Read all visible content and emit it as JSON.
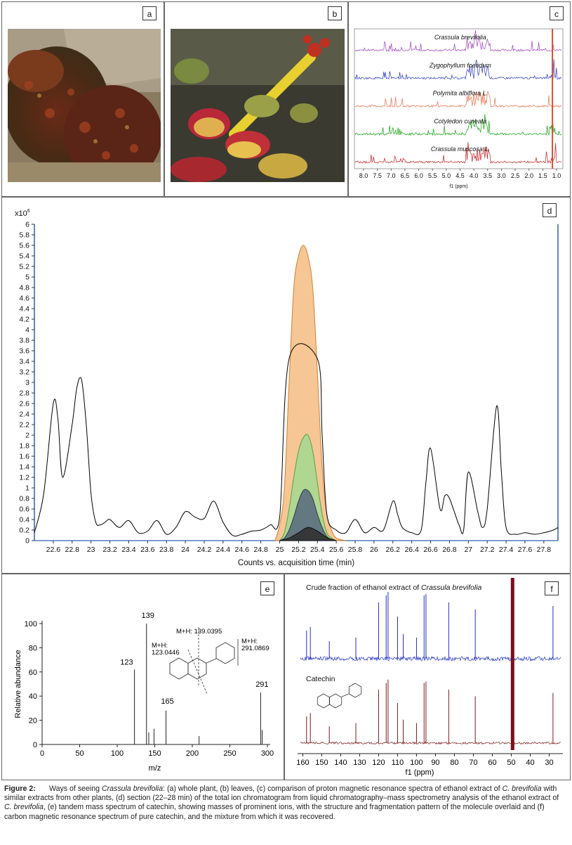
{
  "panels": {
    "a": {
      "label": "a"
    },
    "b": {
      "label": "b"
    },
    "c": {
      "label": "c",
      "spectra": [
        {
          "name": "Crassula brevifolia",
          "color": "#a040b8"
        },
        {
          "name": "Zygophyllum foetidum",
          "color": "#2838c0"
        },
        {
          "name": "Polymita albiflora L.",
          "color": "#e87050"
        },
        {
          "name": "Cotyledon cuneata",
          "color": "#10a010"
        },
        {
          "name": "Crassula muscosa L.",
          "color": "#c02020"
        }
      ],
      "ticks": [
        "8.0",
        "7.5",
        "7.0",
        "6.5",
        "6.0",
        "5.5",
        "5.0",
        "4.5",
        "4.0",
        "3.5",
        "3.0",
        "2.5",
        "2.0",
        "1.5",
        "1.0"
      ],
      "xlabel": "f1 (ppm)"
    },
    "d": {
      "label": "d",
      "ylabel_exp": "x10",
      "ylabel_sup": "6",
      "xlabel": "Counts vs. acquisition time (min)"
    },
    "e": {
      "label": "e",
      "ylabel": "Relative abundance",
      "xlabel": "m/z",
      "annot": {
        "mh1_a": "M+H:",
        "mh1_b": "123.0446",
        "mh2": "M+H: 139.0395",
        "mh3_a": "M+H:",
        "mh3_b": "291.0869",
        "p123": "123",
        "p139": "139",
        "p165": "165",
        "p291": "291"
      }
    },
    "f": {
      "label": "f",
      "top_title_prefix": "Crude fraction of ethanol extract of ",
      "top_title_italic": "Crassula brevifolia",
      "bottom_title": "Catechin",
      "xlabel": "f1 (ppm)",
      "ticks": [
        "160",
        "150",
        "140",
        "130",
        "120",
        "110",
        "100",
        "90",
        "80",
        "70",
        "60",
        "50",
        "40",
        "30"
      ]
    }
  },
  "chart_data": [
    {
      "type": "line",
      "title": "",
      "xlabel": "Counts vs. acquisition time (min)",
      "ylabel": "x10^6",
      "xlim": [
        22.4,
        27.95
      ],
      "ylim": [
        0,
        6
      ],
      "x_ticks": [
        22.6,
        22.8,
        23,
        23.2,
        23.4,
        23.6,
        23.8,
        24,
        24.2,
        24.4,
        24.6,
        24.8,
        25,
        25.2,
        25.4,
        25.6,
        25.8,
        26,
        26.2,
        26.4,
        26.6,
        26.8,
        27,
        27.2,
        27.4,
        27.6,
        27.8
      ],
      "y_ticks": [
        0,
        0.2,
        0.4,
        0.6,
        0.8,
        1,
        1.2,
        1.4,
        1.6,
        1.8,
        2,
        2.2,
        2.4,
        2.6,
        2.8,
        3,
        3.2,
        3.4,
        3.6,
        3.8,
        4,
        4.2,
        4.4,
        4.6,
        4.8,
        5,
        5.2,
        5.4,
        5.6,
        5.8,
        6
      ],
      "series": [
        {
          "color": "#000000",
          "x": [
            22.4,
            22.5,
            22.6,
            22.65,
            22.7,
            22.8,
            22.85,
            22.9,
            22.95,
            23.0,
            23.05,
            23.1,
            23.15,
            23.2,
            23.3,
            23.4,
            23.5,
            23.6,
            23.7,
            23.8,
            23.9,
            24.0,
            24.1,
            24.2,
            24.3,
            24.4,
            24.5,
            24.6,
            24.7,
            24.8,
            24.9,
            25.0,
            25.1,
            25.4,
            25.45,
            25.5,
            25.6,
            25.7,
            25.8,
            25.9,
            26.0,
            26.1,
            26.2,
            26.25,
            26.3,
            26.4,
            26.5,
            26.55,
            26.6,
            26.7,
            26.75,
            26.8,
            26.9,
            26.95,
            27.0,
            27.1,
            27.15,
            27.2,
            27.3,
            27.35,
            27.4,
            27.5,
            27.6,
            27.7,
            27.8,
            27.9,
            27.95
          ],
          "y": [
            0.15,
            0.9,
            2.6,
            2.3,
            1.2,
            2.2,
            2.9,
            3.05,
            2.2,
            0.9,
            0.35,
            0.3,
            0.35,
            0.4,
            0.25,
            0.38,
            0.15,
            0.18,
            0.38,
            0.12,
            0.25,
            0.55,
            0.45,
            0.42,
            0.75,
            0.35,
            0.1,
            0.12,
            0.18,
            0.2,
            0.3,
            0.45,
            3.45,
            3.45,
            2.0,
            0.5,
            0.2,
            0.15,
            0.4,
            0.15,
            0.25,
            0.2,
            0.75,
            0.5,
            0.25,
            0.15,
            0.2,
            1.1,
            1.75,
            0.6,
            0.85,
            0.8,
            0.3,
            0.2,
            1.3,
            0.55,
            0.25,
            0.6,
            2.55,
            1.3,
            0.25,
            0.12,
            0.15,
            0.12,
            0.15,
            0.2,
            0.25
          ]
        },
        {
          "color": "#f2a050",
          "x": [
            24.95,
            25.0,
            25.05,
            25.1,
            25.15,
            25.2,
            25.25,
            25.3,
            25.35,
            25.4,
            25.45,
            25.5,
            25.55,
            25.6,
            25.7
          ],
          "y": [
            0,
            0.3,
            1.0,
            3.0,
            4.8,
            5.4,
            5.6,
            5.4,
            4.8,
            3.2,
            1.4,
            0.5,
            0.2,
            0.05,
            0
          ]
        },
        {
          "color": "#80c060",
          "x": [
            25.0,
            25.05,
            25.1,
            25.15,
            25.2,
            25.25,
            25.3,
            25.35,
            25.4,
            25.45,
            25.5,
            25.55,
            25.6
          ],
          "y": [
            0,
            0.15,
            0.6,
            1.2,
            1.7,
            1.95,
            2.0,
            1.7,
            1.1,
            0.5,
            0.15,
            0.05,
            0
          ]
        },
        {
          "color": "#405a70",
          "x": [
            25.0,
            25.05,
            25.1,
            25.15,
            25.2,
            25.25,
            25.3,
            25.35,
            25.4,
            25.45,
            25.5,
            25.55,
            25.6
          ],
          "y": [
            0,
            0.05,
            0.2,
            0.45,
            0.75,
            0.95,
            0.95,
            0.8,
            0.5,
            0.25,
            0.08,
            0.02,
            0
          ]
        },
        {
          "color": "#222222",
          "x": [
            25.0,
            25.1,
            25.2,
            25.3,
            25.4,
            25.5,
            25.6
          ],
          "y": [
            0,
            0.05,
            0.15,
            0.25,
            0.18,
            0.06,
            0
          ]
        }
      ]
    },
    {
      "type": "bar",
      "title": "",
      "xlabel": "m/z",
      "ylabel": "Relative abundance",
      "xlim": [
        0,
        300
      ],
      "ylim": [
        0,
        100
      ],
      "x_ticks": [
        0,
        50,
        100,
        150,
        200,
        250,
        300
      ],
      "y_ticks": [
        0,
        20,
        40,
        60,
        80,
        100
      ],
      "x": [
        123,
        139,
        142,
        149,
        165,
        209,
        291,
        293
      ],
      "values": [
        62,
        100,
        10,
        13,
        28,
        7,
        43,
        12
      ]
    }
  ],
  "caption": {
    "lead": "Figure 2:",
    "parts": [
      {
        "t": "Ways of seeing ",
        "i": false
      },
      {
        "t": "Crassula brevifolia",
        "i": true
      },
      {
        "t": ": (a) whole plant, (b) leaves, (c) comparison of proton magnetic resonance spectra of ethanol extract of ",
        "i": false
      },
      {
        "t": "C. brevifolia",
        "i": true
      },
      {
        "t": " with similar extracts from other plants, (d) section (22–28 min) of the total ion chromatogram from liquid chromatography–mass spectrometry analysis of the ethanol extract of ",
        "i": false
      },
      {
        "t": "C. brevifolia",
        "i": true
      },
      {
        "t": ", (e) tandem mass spectrum of catechin, showing masses of prominent ions, with the structure and fragmentation pattern of the molecule overlaid and (f) carbon magnetic resonance spectrum of pure catechin, and the mixture from which it was recovered.",
        "i": false
      }
    ]
  }
}
